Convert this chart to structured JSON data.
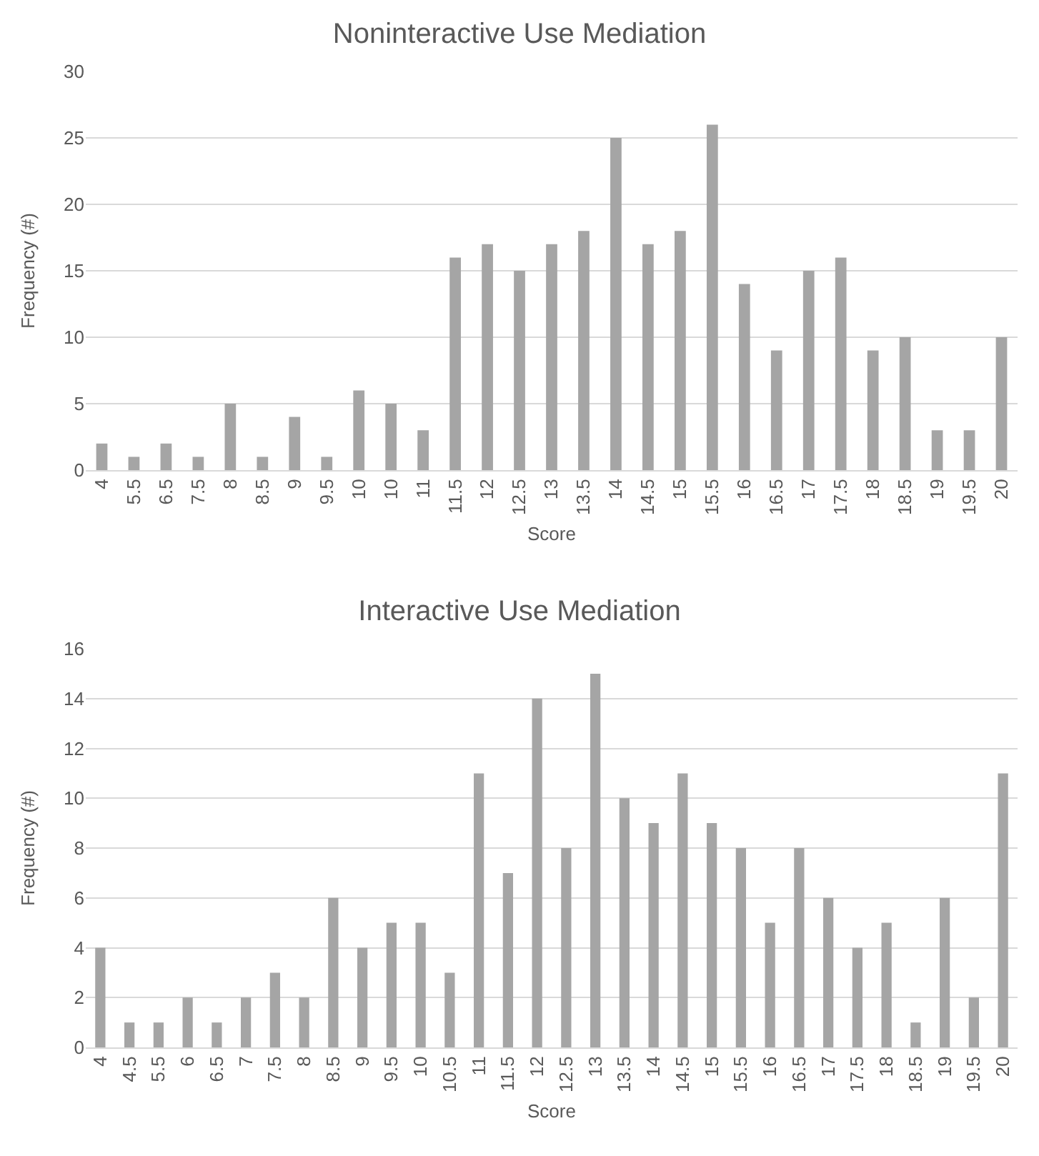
{
  "chart_data": [
    {
      "type": "bar",
      "title": "Noninteractive Use Mediation",
      "xlabel": "Score",
      "ylabel": "Frequency (#)",
      "categories": [
        "4",
        "5.5",
        "6.5",
        "7.5",
        "8",
        "8.5",
        "9",
        "9.5",
        "10",
        "10",
        "11",
        "11.5",
        "12",
        "12.5",
        "13",
        "13.5",
        "14",
        "14.5",
        "15",
        "15.5",
        "16",
        "16.5",
        "17",
        "17.5",
        "18",
        "18.5",
        "19",
        "19.5",
        "20"
      ],
      "values": [
        2,
        1,
        2,
        1,
        5,
        1,
        4,
        1,
        6,
        5,
        3,
        16,
        17,
        15,
        17,
        18,
        25,
        17,
        18,
        26,
        14,
        9,
        15,
        16,
        9,
        10,
        3,
        3,
        10
      ],
      "color": "#a5a5a5",
      "ylim": [
        0,
        30
      ],
      "yticks": [
        0,
        5,
        10,
        15,
        20,
        25,
        30
      ],
      "grid": "y",
      "legend": false
    },
    {
      "type": "bar",
      "title": "Interactive Use Mediation",
      "xlabel": "Score",
      "ylabel": "Frequency (#)",
      "categories": [
        "4",
        "4.5",
        "5.5",
        "6",
        "6.5",
        "7",
        "7.5",
        "8",
        "8.5",
        "9",
        "9.5",
        "10",
        "10.5",
        "11",
        "11.5",
        "12",
        "12.5",
        "13",
        "13.5",
        "14",
        "14.5",
        "15",
        "15.5",
        "16",
        "16.5",
        "17",
        "17.5",
        "18",
        "18.5",
        "19",
        "19.5",
        "20"
      ],
      "values": [
        4,
        1,
        1,
        2,
        1,
        2,
        3,
        2,
        6,
        4,
        5,
        5,
        3,
        11,
        7,
        14,
        8,
        15,
        10,
        9,
        11,
        9,
        8,
        5,
        8,
        6,
        4,
        5,
        1,
        6,
        2,
        11
      ],
      "color": "#a5a5a5",
      "ylim": [
        0,
        16
      ],
      "yticks": [
        0,
        2,
        4,
        6,
        8,
        10,
        12,
        14,
        16
      ],
      "grid": "y",
      "legend": false
    }
  ]
}
